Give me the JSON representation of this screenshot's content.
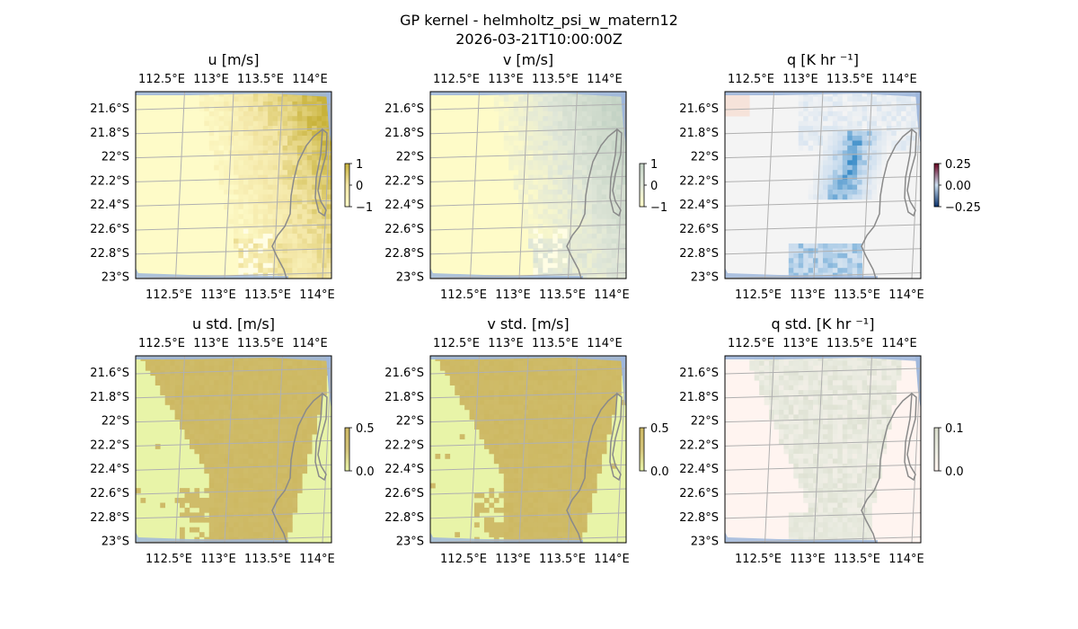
{
  "figure": {
    "title_line1": "GP kernel - helmholtz_psi_w_matern12",
    "title_line2": "2026-03-21T10:00:00Z"
  },
  "chart_data": [
    {
      "type": "heatmap",
      "title": "u [m/s]",
      "lon_ticks": [
        "112.5°E",
        "113°E",
        "113.5°E",
        "114°E"
      ],
      "lat_ticks": [
        "21.6°S",
        "21.8°S",
        "22°S",
        "22.2°S",
        "22.4°S",
        "22.6°S",
        "22.8°S",
        "23°S"
      ],
      "colorbar": {
        "ticks": [
          "1",
          "0",
          "−1"
        ],
        "range": [
          -1,
          1
        ]
      },
      "colors": {
        "base": "#fefbc8",
        "mid": "#f3e6a6",
        "high": "#c8b23a",
        "low": "#ffffff"
      },
      "pattern": "fan"
    },
    {
      "type": "heatmap",
      "title": "v [m/s]",
      "lon_ticks": [
        "112.5°E",
        "113°E",
        "113.5°E",
        "114°E"
      ],
      "lat_ticks": [
        "21.6°S",
        "21.8°S",
        "22°S",
        "22.2°S",
        "22.4°S",
        "22.6°S",
        "22.8°S",
        "23°S"
      ],
      "colorbar": {
        "ticks": [
          "1",
          "0",
          "−1"
        ],
        "range": [
          -1,
          1
        ]
      },
      "colors": {
        "base": "#fefbc8",
        "mid": "#dfe6d8",
        "high": "#c4d3c5",
        "low": "#ffffff"
      },
      "pattern": "fan"
    },
    {
      "type": "heatmap",
      "title": "q [K hr ⁻¹]",
      "lon_ticks": [
        "112.5°E",
        "113°E",
        "113.5°E",
        "114°E"
      ],
      "lat_ticks": [
        "21.6°S",
        "21.8°S",
        "22°S",
        "22.2°S",
        "22.4°S",
        "22.6°S",
        "22.8°S",
        "23°S"
      ],
      "colorbar": {
        "ticks": [
          "0.25",
          "0.00",
          "−0.25"
        ],
        "range": [
          -0.25,
          0.25
        ]
      },
      "colors": {
        "base": "#f4f4f4",
        "mid": "#c9dcee",
        "high": "#3d8ec9",
        "low": "#f8d8c8"
      },
      "pattern": "streak"
    },
    {
      "type": "heatmap",
      "title": "u std. [m/s]",
      "lon_ticks": [
        "112.5°E",
        "113°E",
        "113.5°E",
        "114°E"
      ],
      "lat_ticks": [
        "21.6°S",
        "21.8°S",
        "22°S",
        "22.2°S",
        "22.4°S",
        "22.6°S",
        "22.8°S",
        "23°S"
      ],
      "colorbar": {
        "ticks": [
          "0.5",
          "0.0"
        ],
        "range": [
          0,
          0.5
        ]
      },
      "colors": {
        "base": "#e8f4a8",
        "mid": "#d4c47a",
        "high": "#cdb862",
        "low": "#e8f4a8"
      },
      "pattern": "std"
    },
    {
      "type": "heatmap",
      "title": "v std. [m/s]",
      "lon_ticks": [
        "112.5°E",
        "113°E",
        "113.5°E",
        "114°E"
      ],
      "lat_ticks": [
        "21.6°S",
        "21.8°S",
        "22°S",
        "22.2°S",
        "22.4°S",
        "22.6°S",
        "22.8°S",
        "23°S"
      ],
      "colorbar": {
        "ticks": [
          "0.5",
          "0.0"
        ],
        "range": [
          0,
          0.5
        ]
      },
      "colors": {
        "base": "#e8f4a8",
        "mid": "#d4c47a",
        "high": "#cdb862",
        "low": "#e8f4a8"
      },
      "pattern": "std"
    },
    {
      "type": "heatmap",
      "title": "q std. [K hr ⁻¹]",
      "lon_ticks": [
        "112.5°E",
        "113°E",
        "113.5°E",
        "114°E"
      ],
      "lat_ticks": [
        "21.6°S",
        "21.8°S",
        "22°S",
        "22.2°S",
        "22.4°S",
        "22.6°S",
        "22.8°S",
        "23°S"
      ],
      "colorbar": {
        "ticks": [
          "0.1",
          "0.0"
        ],
        "range": [
          0,
          0.1
        ]
      },
      "colors": {
        "base": "#fff4f0",
        "mid": "#e9ebe0",
        "high": "#d8dccb",
        "low": "#fff4f0"
      },
      "pattern": "qstd"
    }
  ],
  "map_colors": {
    "ocean_edge": "#9fb7dc",
    "coast": "#8a8a8a",
    "grid": "#b0b0b0"
  }
}
